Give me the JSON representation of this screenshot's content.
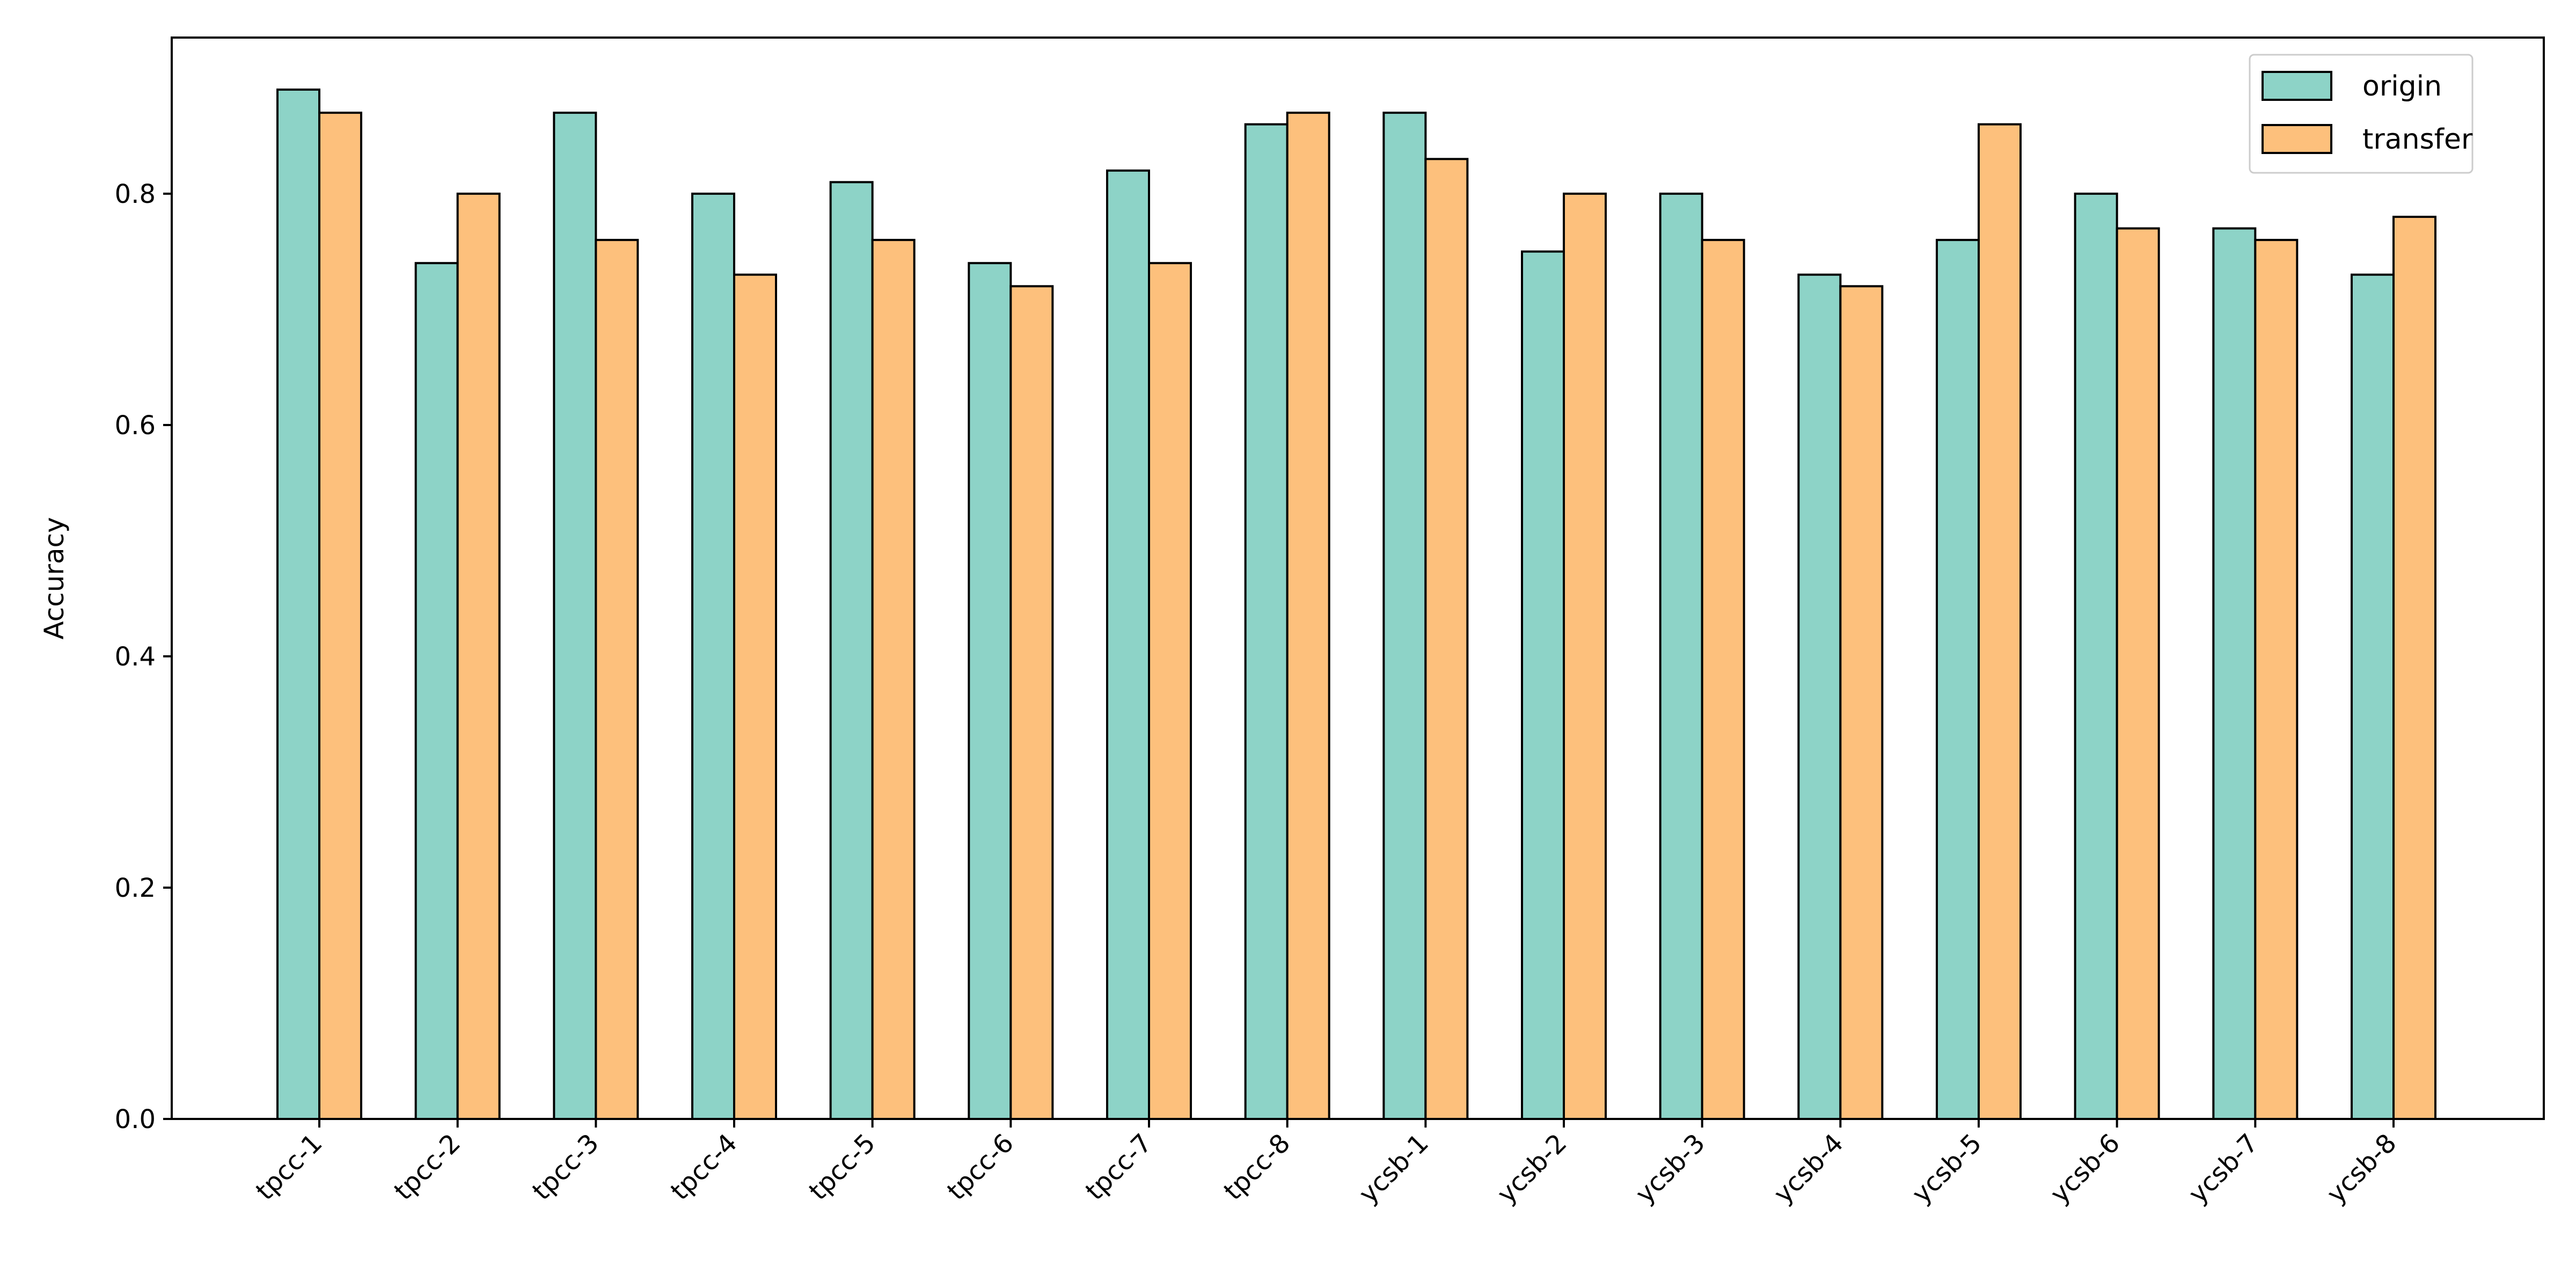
{
  "chart_data": {
    "type": "bar",
    "title": "",
    "xlabel": "",
    "ylabel": "Accuracy",
    "ylim": [
      0,
      0.935
    ],
    "yticks": [
      "0.0",
      "0.2",
      "0.4",
      "0.6",
      "0.8"
    ],
    "grid": false,
    "legend_position": "top-right",
    "categories": [
      "tpcc-1",
      "tpcc-2",
      "tpcc-3",
      "tpcc-4",
      "tpcc-5",
      "tpcc-6",
      "tpcc-7",
      "tpcc-8",
      "ycsb-1",
      "ycsb-2",
      "ycsb-3",
      "ycsb-4",
      "ycsb-5",
      "ycsb-6",
      "ycsb-7",
      "ycsb-8"
    ],
    "series": [
      {
        "name": "origin",
        "color": "#8dd3c7",
        "values": [
          0.89,
          0.74,
          0.87,
          0.8,
          0.81,
          0.74,
          0.82,
          0.86,
          0.87,
          0.75,
          0.8,
          0.73,
          0.76,
          0.8,
          0.77,
          0.73
        ]
      },
      {
        "name": "transfer",
        "color": "#fdc07c",
        "values": [
          0.87,
          0.8,
          0.76,
          0.73,
          0.76,
          0.72,
          0.74,
          0.87,
          0.83,
          0.8,
          0.76,
          0.72,
          0.86,
          0.77,
          0.76,
          0.78
        ]
      }
    ]
  }
}
